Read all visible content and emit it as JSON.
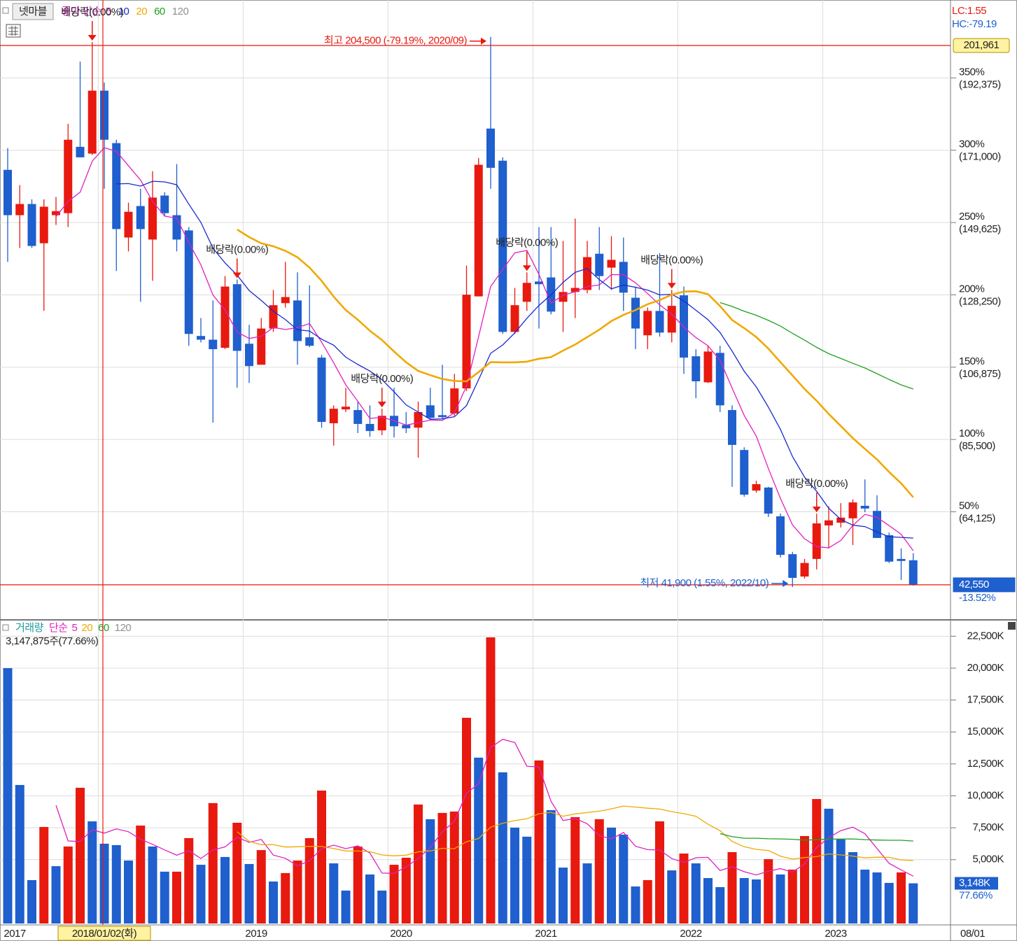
{
  "header": {
    "stock": "넷마블",
    "lc": "LC:1.55",
    "hc": "HC:-79.19"
  },
  "chart_data": [
    {
      "type": "candlestick",
      "categories": [
        "2017",
        null,
        null,
        null,
        null,
        null,
        null,
        null,
        "2018/01/02(화)",
        null,
        null,
        null,
        null,
        null,
        null,
        null,
        null,
        null,
        null,
        null,
        "2019",
        null,
        null,
        null,
        null,
        null,
        null,
        null,
        null,
        null,
        null,
        null,
        "2020",
        null,
        null,
        null,
        null,
        null,
        null,
        null,
        null,
        null,
        null,
        null,
        "2021",
        null,
        null,
        null,
        null,
        null,
        null,
        null,
        null,
        null,
        null,
        null,
        "2022",
        null,
        null,
        null,
        null,
        null,
        null,
        null,
        null,
        null,
        null,
        null,
        "2023",
        null,
        null,
        null,
        null,
        null,
        null,
        null
      ],
      "open": [
        165200,
        151800,
        155100,
        143500,
        151800,
        152400,
        172000,
        170000,
        188600,
        173100,
        145200,
        154500,
        144600,
        157600,
        151800,
        147300,
        116100,
        115000,
        112600,
        131400,
        113800,
        107600,
        118300,
        125800,
        126600,
        115700,
        109700,
        90300,
        94400,
        94200,
        90100,
        88200,
        92500,
        89800,
        89000,
        95600,
        92700,
        93200,
        100600,
        127800,
        177400,
        167900,
        117300,
        126200,
        132200,
        133400,
        126200,
        129100,
        129700,
        140400,
        136300,
        138000,
        127400,
        116300,
        123500,
        117100,
        128100,
        110100,
        102400,
        111100,
        94200,
        82400,
        70400,
        71300,
        62800,
        51600,
        45000,
        50200,
        60100,
        60900,
        62200,
        65900,
        64400,
        57200,
        50200,
        49800
      ],
      "high": [
        171600,
        160700,
        156500,
        156500,
        157200,
        178800,
        197200,
        203000,
        191000,
        174100,
        155500,
        159600,
        164800,
        158600,
        166900,
        148300,
        121400,
        126600,
        133800,
        132800,
        119400,
        121400,
        129700,
        138000,
        134900,
        131100,
        110500,
        95600,
        100800,
        96700,
        95600,
        94600,
        100800,
        93600,
        96700,
        100800,
        107600,
        104900,
        136900,
        168700,
        204500,
        168900,
        130300,
        134900,
        148300,
        148300,
        144200,
        150800,
        144200,
        148300,
        145600,
        145200,
        130700,
        124500,
        140600,
        129700,
        130700,
        112200,
        113200,
        113200,
        95600,
        83200,
        73300,
        71500,
        63600,
        52300,
        50200,
        63600,
        65700,
        66700,
        67800,
        73700,
        69000,
        58000,
        53300,
        51900
      ],
      "low": [
        138000,
        142100,
        142100,
        123500,
        148900,
        148300,
        168900,
        169600,
        159600,
        135300,
        141100,
        126200,
        132400,
        151400,
        141100,
        113200,
        114200,
        90500,
        112200,
        100800,
        102200,
        107600,
        117300,
        124500,
        107600,
        112800,
        89000,
        83700,
        93600,
        87400,
        86300,
        86800,
        86100,
        87400,
        80100,
        91500,
        91500,
        92500,
        99800,
        127800,
        159600,
        116700,
        116700,
        123500,
        118300,
        122500,
        117300,
        121400,
        128700,
        129700,
        129700,
        123500,
        112200,
        112200,
        115900,
        114200,
        104900,
        97700,
        102200,
        93600,
        71500,
        68600,
        69800,
        62600,
        50600,
        41900,
        44400,
        47100,
        53300,
        59500,
        54300,
        64000,
        56400,
        49000,
        44000,
        42300
      ],
      "close": [
        151800,
        155100,
        142700,
        154300,
        153000,
        174100,
        168900,
        188600,
        174100,
        147700,
        152800,
        147700,
        157000,
        152400,
        144600,
        116700,
        115000,
        112200,
        130700,
        111700,
        107200,
        118300,
        125200,
        127600,
        114600,
        113200,
        90700,
        94600,
        95200,
        90100,
        88000,
        92500,
        89400,
        88800,
        93600,
        91900,
        92100,
        100600,
        128300,
        166700,
        165800,
        117300,
        125200,
        131800,
        131400,
        123300,
        129100,
        130300,
        139400,
        133800,
        138600,
        128900,
        118300,
        123500,
        117100,
        125000,
        109700,
        102700,
        111500,
        95600,
        83900,
        69200,
        72300,
        63600,
        51400,
        44600,
        49000,
        60700,
        61600,
        62400,
        66900,
        65100,
        56400,
        49400,
        49600,
        42550
      ],
      "up_color": "#e8190f",
      "down_color": "#1f5fce",
      "ylim": [
        32600,
        215400
      ],
      "yticks": [
        {
          "value": 192375,
          "label": "(192,375)"
        },
        {
          "value": 171000,
          "label": "(171,000)"
        },
        {
          "value": 149625,
          "label": "(149,625)"
        },
        {
          "value": 128250,
          "label": "(128,250)"
        },
        {
          "value": 106875,
          "label": "(106,875)"
        },
        {
          "value": 85500,
          "label": "(85,500)"
        },
        {
          "value": 64125,
          "label": "(64,125)"
        }
      ],
      "ytick_percent_labels": [
        "350%",
        "300%",
        "250%",
        "200%",
        "150%",
        "100%",
        "50%"
      ],
      "grid": true,
      "moving_averages": {
        "label": "종가 단순",
        "periods": [
          5,
          10,
          20,
          60,
          120
        ],
        "colors": [
          "#e020c0",
          "#1a2ad0",
          "#f0a800",
          "#20a020",
          "#909090"
        ]
      },
      "ex_dividend": {
        "label": "배당락(0.00%)",
        "indices": [
          7,
          19,
          31,
          43,
          55,
          67
        ]
      },
      "high_note": "최고 204,500 (-79.19%, 2020/09)",
      "low_note": "최저 41,900 (1.55%, 2022/10)",
      "reference_lines": [
        {
          "value": 201961,
          "label": "201,961"
        },
        {
          "value": 42550,
          "label": "42,550"
        }
      ],
      "current_change": "-13.52%",
      "crosshair_index": 8,
      "x_end_label": "08/01"
    },
    {
      "type": "volume_bar",
      "title": "거래량",
      "values": [
        20000,
        10850,
        3400,
        7560,
        4490,
        6030,
        10630,
        8000,
        6250,
        6140,
        4930,
        7670,
        6030,
        4060,
        4060,
        6690,
        4600,
        9430,
        5210,
        7890,
        4660,
        5750,
        3290,
        3950,
        4930,
        6690,
        10410,
        4710,
        2580,
        6030,
        3840,
        2580,
        4600,
        5150,
        9320,
        8170,
        8660,
        8770,
        16110,
        12990,
        22410,
        11840,
        7510,
        6800,
        12770,
        8880,
        4380,
        8330,
        4710,
        8170,
        7510,
        6960,
        2900,
        3400,
        8000,
        4160,
        5480,
        4710,
        3560,
        2850,
        5590,
        3560,
        3450,
        5040,
        3840,
        4220,
        6850,
        9750,
        8990,
        6580,
        5590,
        4220,
        4000,
        3180,
        4000,
        3148
      ],
      "volume_up": [
        false,
        false,
        false,
        true,
        false,
        true,
        true,
        false,
        false,
        false,
        false,
        true,
        false,
        false,
        true,
        true,
        false,
        true,
        false,
        true,
        false,
        true,
        false,
        true,
        true,
        true,
        true,
        false,
        false,
        true,
        false,
        false,
        true,
        true,
        true,
        false,
        true,
        true,
        true,
        false,
        true,
        false,
        false,
        false,
        true,
        false,
        false,
        true,
        false,
        true,
        false,
        false,
        false,
        true,
        true,
        false,
        true,
        false,
        false,
        false,
        true,
        false,
        false,
        true,
        false,
        true,
        true,
        true,
        false,
        false,
        false,
        false,
        false,
        false,
        true,
        false
      ],
      "ylim": [
        0,
        23670
      ],
      "yticks": [
        {
          "value": 22500,
          "label": "22,500K"
        },
        {
          "value": 20000,
          "label": "20,000K"
        },
        {
          "value": 17500,
          "label": "17,500K"
        },
        {
          "value": 15000,
          "label": "15,000K"
        },
        {
          "value": 12500,
          "label": "12,500K"
        },
        {
          "value": 10000,
          "label": "10,000K"
        },
        {
          "value": 7500,
          "label": "7,500K"
        },
        {
          "value": 5000,
          "label": "5,000K"
        }
      ],
      "moving_averages": {
        "label": "단순",
        "periods": [
          5,
          20,
          60,
          120
        ],
        "colors": [
          "#e020c0",
          "#f0a800",
          "#20a020",
          "#909090"
        ]
      },
      "info": "3,147,875주(77.66%)",
      "last_label": "3,148K",
      "last_percent": "77.66%"
    }
  ]
}
